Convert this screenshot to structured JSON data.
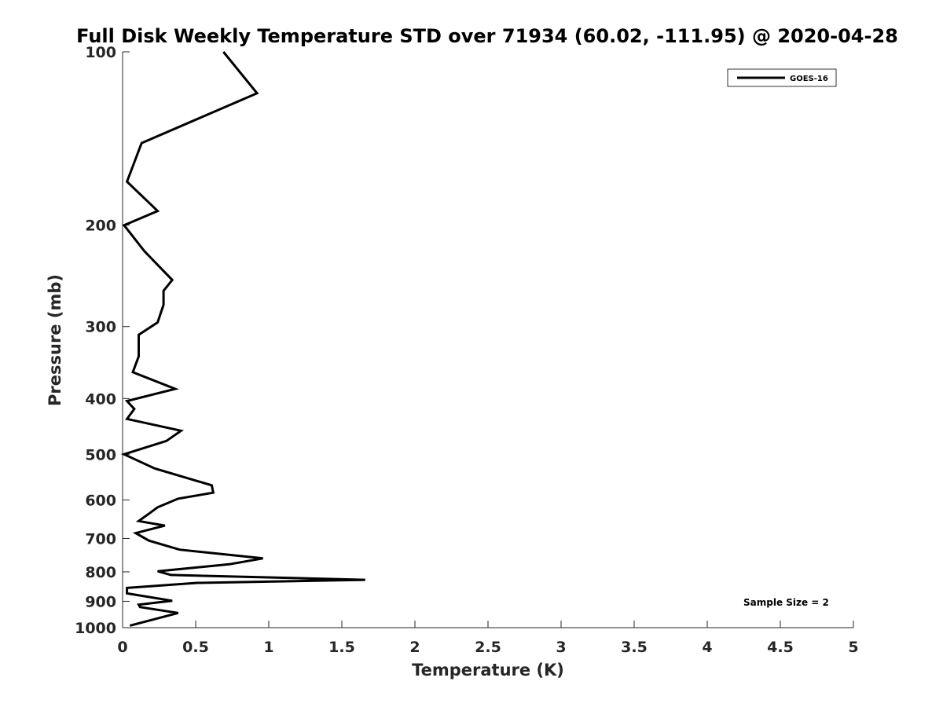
{
  "chart_data": {
    "type": "line",
    "title": "Full Disk Weekly Temperature STD over 71934 (60.02, -111.95) @ 2020-04-28",
    "xlabel": "Temperature (K)",
    "ylabel": "Pressure (mb)",
    "xlim": [
      0,
      5
    ],
    "ylim": [
      100,
      1000
    ],
    "yscale": "log",
    "y_reversed": true,
    "grid": false,
    "xticks": [
      0,
      0.5,
      1,
      1.5,
      2,
      2.5,
      3,
      3.5,
      4,
      4.5,
      5
    ],
    "xtick_labels": [
      "0",
      "0.5",
      "1",
      "1.5",
      "2",
      "2.5",
      "3",
      "3.5",
      "4",
      "4.5",
      "5"
    ],
    "yticks": [
      100,
      200,
      300,
      400,
      500,
      600,
      700,
      800,
      900,
      1000
    ],
    "ytick_labels": [
      "100",
      "200",
      "300",
      "400",
      "500",
      "600",
      "700",
      "800",
      "900",
      "1000"
    ],
    "legend_position": "top-right",
    "series": [
      {
        "name": "GOES-16",
        "color": "#000000",
        "x": [
          0.69,
          0.92,
          0.13,
          0.03,
          0.24,
          0.01,
          0.15,
          0.34,
          0.28,
          0.28,
          0.24,
          0.11,
          0.11,
          0.07,
          0.36,
          0.03,
          0.08,
          0.03,
          0.4,
          0.3,
          0.01,
          0.22,
          0.61,
          0.62,
          0.38,
          0.24,
          0.18,
          0.11,
          0.29,
          0.09,
          0.18,
          0.39,
          0.96,
          0.73,
          0.24,
          0.33,
          1.66,
          0.51,
          0.03,
          0.03,
          0.34,
          0.11,
          0.12,
          0.38,
          0.05
        ],
        "y": [
          100,
          118,
          144,
          168,
          189,
          200,
          222,
          249,
          260,
          275,
          295,
          310,
          338,
          360,
          385,
          404,
          417,
          434,
          455,
          474,
          500,
          529,
          566,
          583,
          597,
          618,
          634,
          653,
          665,
          685,
          706,
          732,
          758,
          776,
          798,
          810,
          826,
          836,
          853,
          872,
          898,
          912,
          921,
          943,
          992
        ]
      }
    ],
    "annotations": [
      "Sample Size = 2"
    ]
  }
}
